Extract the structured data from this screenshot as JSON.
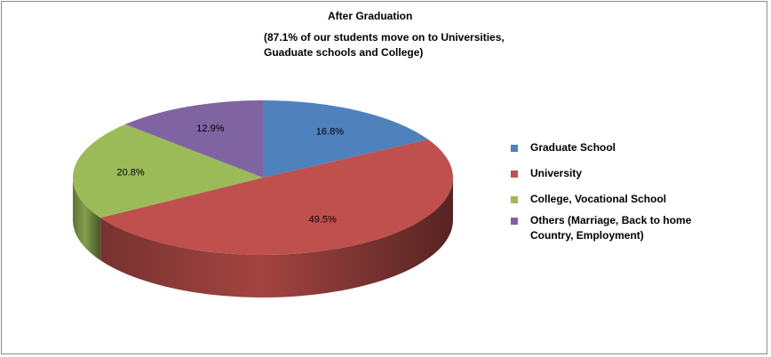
{
  "chart_data": {
    "type": "pie",
    "title": "After Graduation",
    "subtitle_lines": [
      "(87.1% of our students move on to Universities,",
      "Guaduate schools and College)"
    ],
    "legend_position": "right",
    "slices": [
      {
        "name": "Graduate School",
        "value": 16.8,
        "label": "16.8%",
        "color": "#4f81bd"
      },
      {
        "name": "University",
        "value": 49.5,
        "label": "49.5%",
        "color": "#c0504d"
      },
      {
        "name": "College, Vocational School",
        "value": 20.8,
        "label": "20.8%",
        "color": "#9bbb59"
      },
      {
        "name": "Others (Marriage, Back to home Country, Employment)",
        "legend_lines": [
          "Others (Marriage, Back to home",
          "Country, Employment)"
        ],
        "value": 12.9,
        "label": "12.9%",
        "color": "#8064a2"
      }
    ]
  }
}
